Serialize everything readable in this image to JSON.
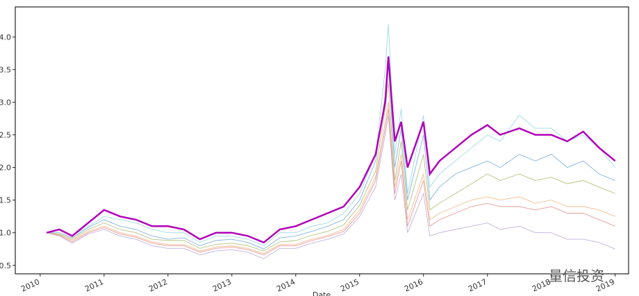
{
  "chart_data": {
    "type": "line",
    "x_label": "Date",
    "annotation": "量信投资",
    "xlim": [
      2009.61,
      2019.21
    ],
    "xticks": [
      2010,
      2011,
      2012,
      2013,
      2014,
      2015,
      2016,
      2017,
      2018,
      2019
    ],
    "ylim": [
      0.37,
      4.46
    ],
    "yticks": [
      0.5,
      {
        "value": 1,
        "label": "1.0"
      },
      1.5,
      {
        "value": 2,
        "label": "2.0"
      },
      2.5,
      {
        "value": 3,
        "label": "3.0"
      },
      3.5,
      {
        "value": 4,
        "label": "4.0"
      }
    ],
    "x": [
      2010.1,
      2010.3,
      2010.5,
      2010.75,
      2011.0,
      2011.25,
      2011.5,
      2011.75,
      2012.0,
      2012.25,
      2012.5,
      2012.75,
      2013.0,
      2013.25,
      2013.5,
      2013.75,
      2014.0,
      2014.25,
      2014.5,
      2014.75,
      2015.0,
      2015.25,
      2015.4,
      2015.45,
      2015.55,
      2015.65,
      2015.75,
      2016.0,
      2016.1,
      2016.25,
      2016.5,
      2016.75,
      2017.0,
      2017.2,
      2017.5,
      2017.75,
      2018.0,
      2018.25,
      2018.5,
      2018.75,
      2019.0
    ],
    "series": [
      {
        "color": "#8fd3e0",
        "values": [
          1.0,
          1.05,
          0.95,
          1.1,
          1.25,
          1.2,
          1.15,
          1.05,
          1.0,
          1.0,
          0.85,
          0.95,
          0.95,
          0.9,
          0.8,
          1.0,
          1.0,
          1.1,
          1.15,
          1.3,
          1.6,
          2.2,
          3.5,
          4.2,
          2.2,
          2.9,
          1.6,
          2.8,
          1.7,
          1.9,
          2.1,
          2.3,
          2.5,
          2.4,
          2.8,
          2.6,
          2.6,
          2.4,
          2.5,
          2.3,
          2.0
        ]
      },
      {
        "color": "#6fa8d6",
        "values": [
          1.0,
          1.0,
          0.92,
          1.08,
          1.2,
          1.1,
          1.05,
          0.95,
          0.9,
          0.92,
          0.8,
          0.88,
          0.9,
          0.85,
          0.75,
          0.92,
          0.95,
          1.02,
          1.1,
          1.2,
          1.5,
          2.1,
          3.1,
          3.6,
          2.0,
          2.6,
          1.5,
          2.5,
          1.5,
          1.7,
          1.9,
          2.0,
          2.1,
          2.0,
          2.2,
          2.1,
          2.2,
          2.0,
          2.1,
          1.9,
          1.8
        ]
      },
      {
        "color": "#a9b86a",
        "values": [
          1.0,
          0.98,
          0.9,
          1.05,
          1.15,
          1.05,
          1.0,
          0.9,
          0.88,
          0.88,
          0.76,
          0.82,
          0.84,
          0.8,
          0.72,
          0.86,
          0.88,
          0.96,
          1.02,
          1.12,
          1.42,
          1.95,
          2.9,
          3.3,
          1.8,
          2.4,
          1.35,
          2.2,
          1.35,
          1.45,
          1.6,
          1.75,
          1.9,
          1.8,
          1.9,
          1.8,
          1.85,
          1.75,
          1.8,
          1.7,
          1.6
        ]
      },
      {
        "color": "#f2b27a",
        "values": [
          1.0,
          0.97,
          0.88,
          1.02,
          1.1,
          1.0,
          0.95,
          0.86,
          0.82,
          0.82,
          0.72,
          0.78,
          0.8,
          0.76,
          0.68,
          0.82,
          0.82,
          0.9,
          0.96,
          1.05,
          1.35,
          1.85,
          2.7,
          3.0,
          1.7,
          2.2,
          1.2,
          1.9,
          1.2,
          1.3,
          1.4,
          1.5,
          1.55,
          1.5,
          1.55,
          1.45,
          1.5,
          1.4,
          1.4,
          1.35,
          1.25
        ]
      },
      {
        "color": "#e58a8a",
        "values": [
          1.0,
          0.96,
          0.86,
          1.0,
          1.08,
          0.98,
          0.93,
          0.84,
          0.8,
          0.8,
          0.7,
          0.76,
          0.78,
          0.74,
          0.66,
          0.8,
          0.8,
          0.88,
          0.94,
          1.02,
          1.3,
          1.8,
          2.6,
          2.9,
          1.6,
          2.1,
          1.1,
          1.8,
          1.1,
          1.2,
          1.3,
          1.4,
          1.45,
          1.4,
          1.4,
          1.35,
          1.4,
          1.3,
          1.3,
          1.2,
          1.1
        ]
      },
      {
        "color": "#b7a3d6",
        "values": [
          1.0,
          0.95,
          0.84,
          0.98,
          1.05,
          0.95,
          0.9,
          0.8,
          0.76,
          0.76,
          0.66,
          0.72,
          0.74,
          0.7,
          0.6,
          0.76,
          0.76,
          0.84,
          0.9,
          0.98,
          1.25,
          1.7,
          2.5,
          2.8,
          1.5,
          1.9,
          1.0,
          1.6,
          0.95,
          1.0,
          1.05,
          1.1,
          1.15,
          1.05,
          1.1,
          1.0,
          1.0,
          0.9,
          0.9,
          0.85,
          0.75
        ]
      },
      {
        "color": "#b000b8",
        "bold": true,
        "values": [
          1.0,
          1.05,
          0.95,
          1.15,
          1.35,
          1.25,
          1.2,
          1.1,
          1.1,
          1.05,
          0.9,
          1.0,
          1.0,
          0.95,
          0.85,
          1.05,
          1.1,
          1.2,
          1.3,
          1.4,
          1.7,
          2.2,
          3.0,
          3.7,
          2.4,
          2.7,
          2.0,
          2.7,
          1.9,
          2.1,
          2.3,
          2.5,
          2.65,
          2.5,
          2.6,
          2.5,
          2.5,
          2.4,
          2.55,
          2.3,
          2.1
        ]
      }
    ]
  }
}
